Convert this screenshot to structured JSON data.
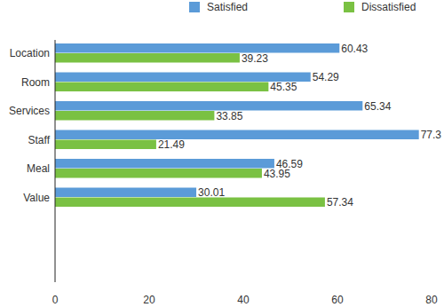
{
  "chart_data": {
    "type": "bar",
    "orientation": "horizontal",
    "categories": [
      "Location",
      "Room",
      "Services",
      "Staff",
      "Meal",
      "Value"
    ],
    "series": [
      {
        "name": "Satisfied",
        "color": "#5b9bd8",
        "values": [
          60.43,
          54.29,
          65.34,
          77.3,
          46.59,
          30.01
        ]
      },
      {
        "name": "Dissatisfied",
        "color": "#7ac143",
        "values": [
          39.23,
          45.35,
          33.85,
          21.49,
          43.95,
          57.34
        ]
      }
    ],
    "xlim": [
      0,
      80
    ],
    "xticks": [
      0,
      20,
      40,
      60,
      80
    ],
    "grid": false,
    "legend": "top",
    "data_labels": true
  }
}
